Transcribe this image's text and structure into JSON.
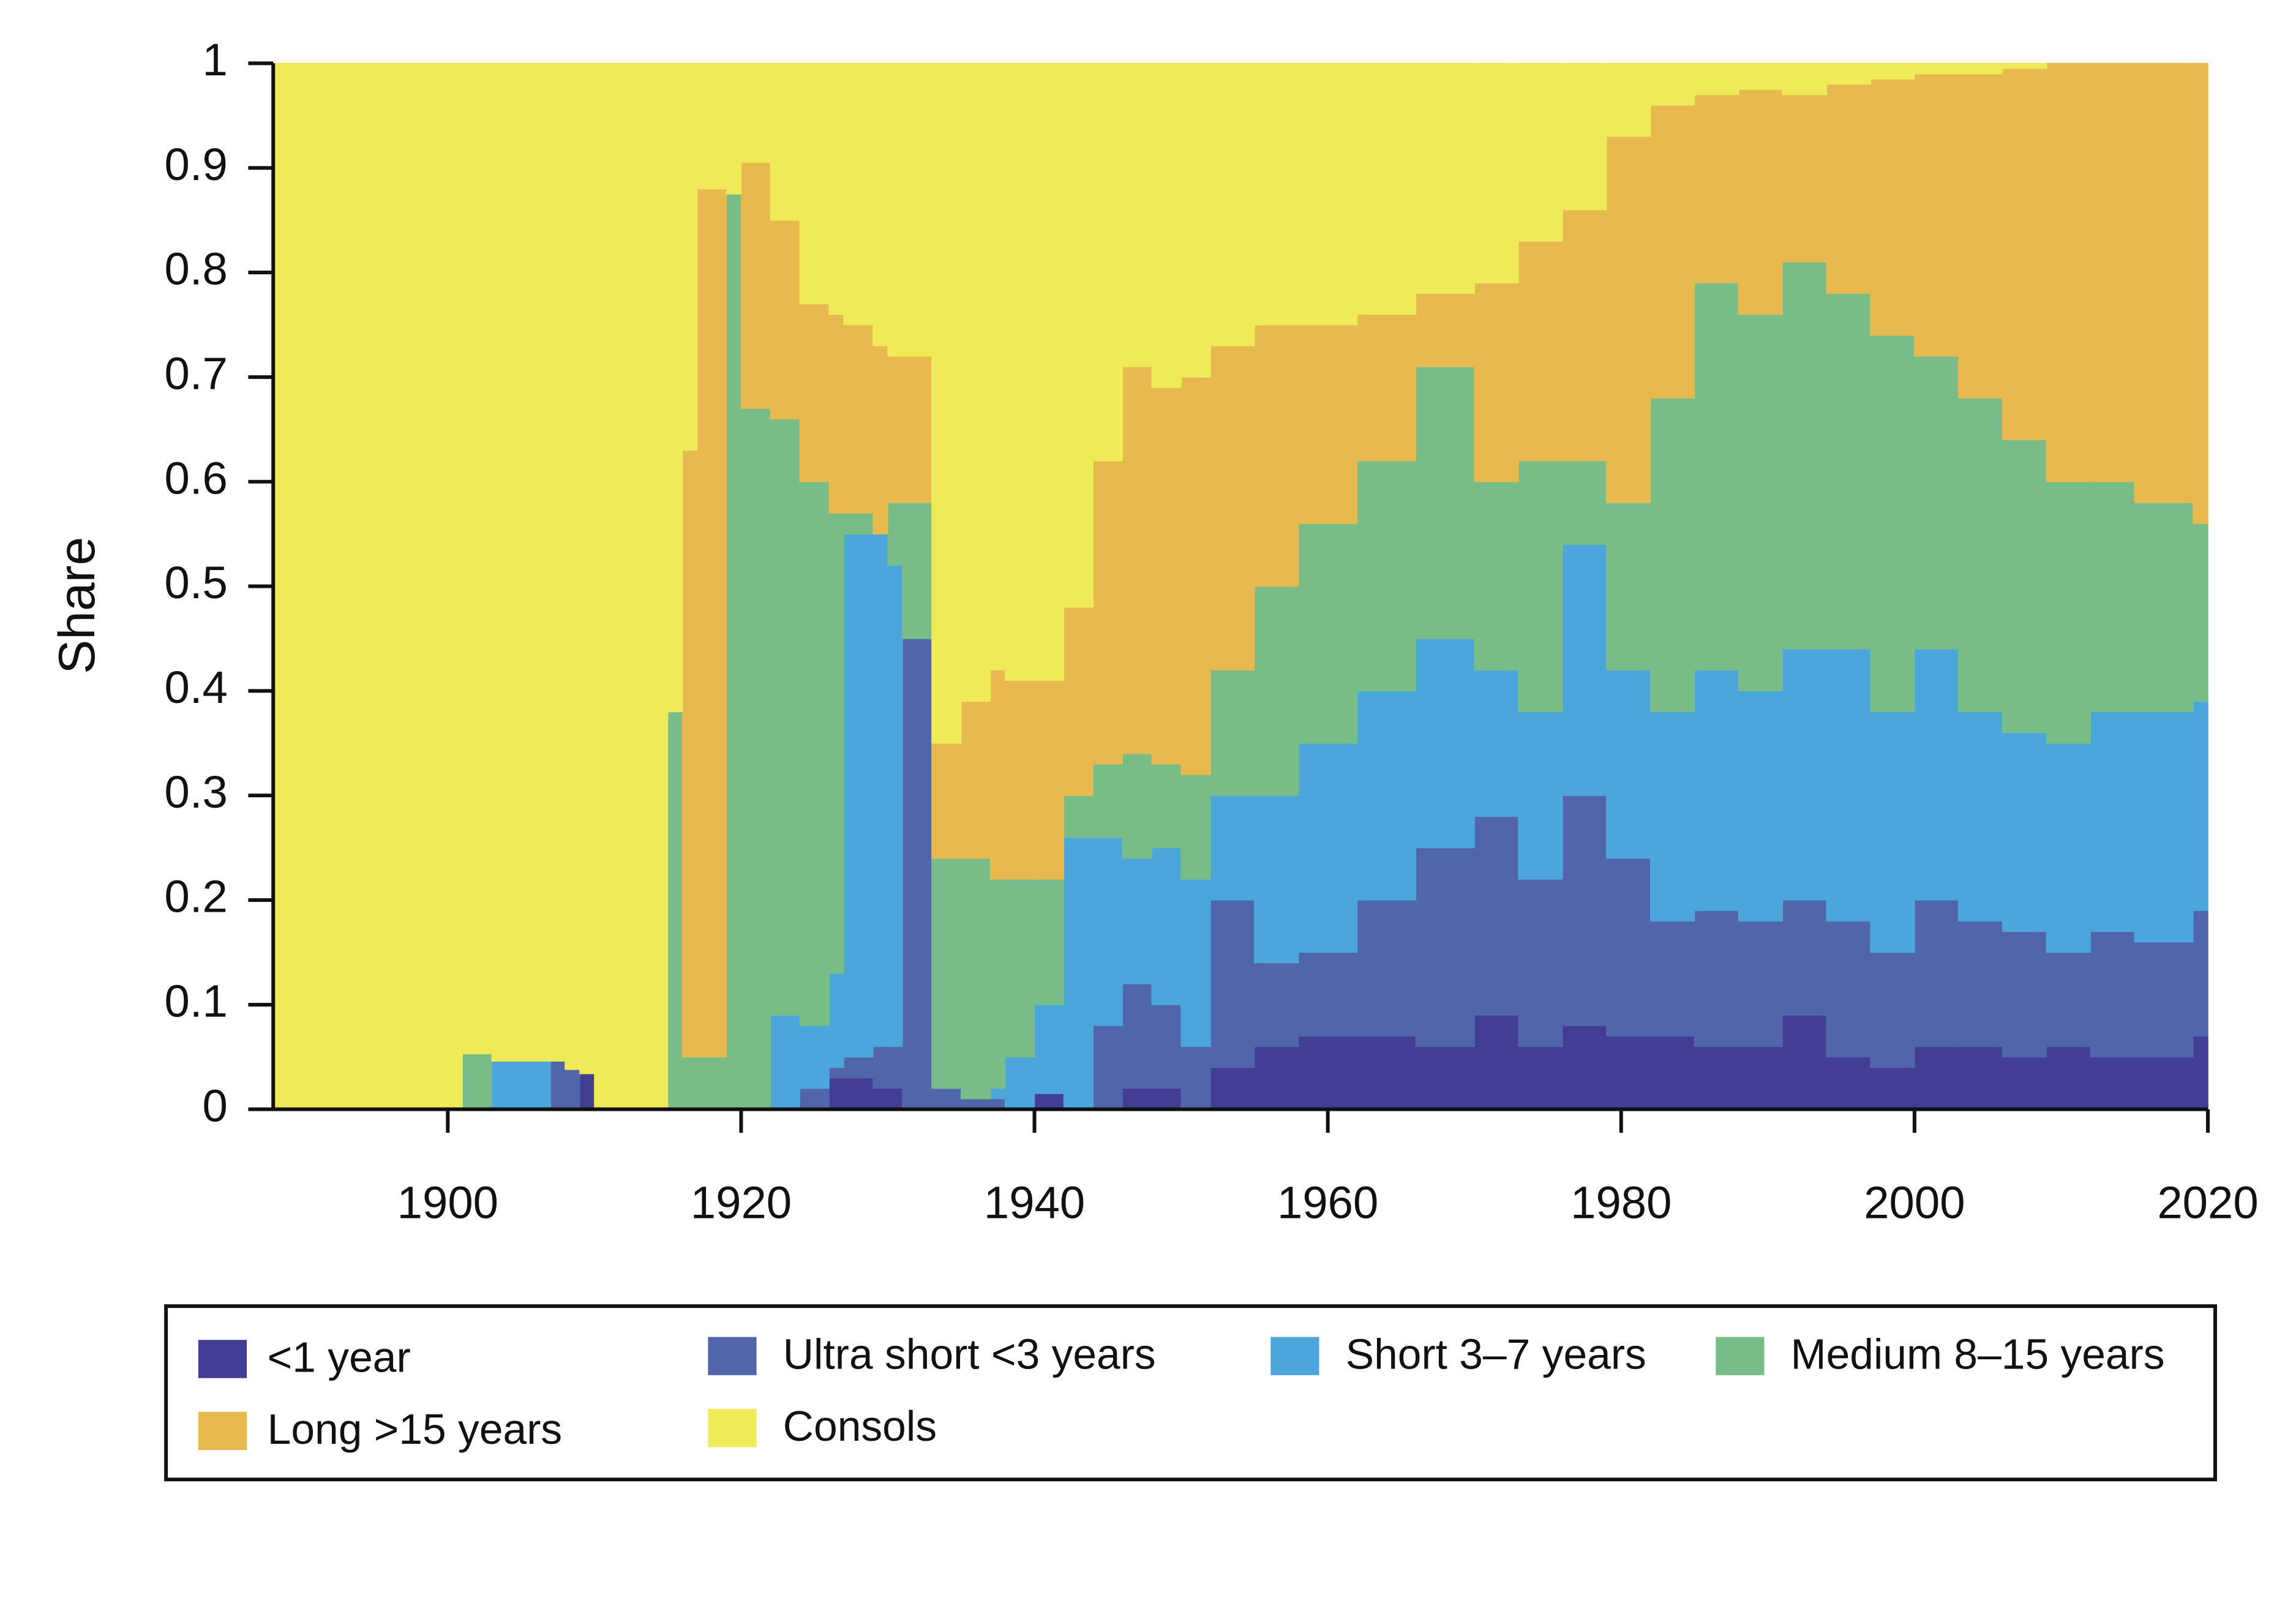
{
  "chart_data": {
    "type": "stacked-area",
    "y_label": "Share",
    "x": [
      1888,
      1901,
      1903,
      1907,
      1908,
      1909,
      1910,
      1915,
      1916,
      1917,
      1919,
      1920,
      1922,
      1924,
      1926,
      1927,
      1929,
      1930,
      1931,
      1933,
      1935,
      1937,
      1938,
      1940,
      1942,
      1944,
      1946,
      1948,
      1950,
      1952,
      1955,
      1958,
      1962,
      1966,
      1970,
      1973,
      1976,
      1979,
      1982,
      1985,
      1988,
      1991,
      1994,
      1997,
      2000,
      2003,
      2006,
      2009,
      2012,
      2015,
      2019
    ],
    "series": [
      {
        "name": "<1 year",
        "color": "#433d93",
        "values": [
          0,
          0,
          0,
          0,
          0,
          0.034,
          0,
          0,
          0,
          0,
          0,
          0,
          0,
          0,
          0.03,
          0.03,
          0.02,
          0.02,
          0,
          0,
          0,
          0,
          0,
          0.015,
          0,
          0,
          0.02,
          0.02,
          0,
          0.04,
          0.06,
          0.07,
          0.07,
          0.06,
          0.09,
          0.06,
          0.08,
          0.07,
          0.07,
          0.06,
          0.06,
          0.09,
          0.05,
          0.04,
          0.06,
          0.06,
          0.05,
          0.06,
          0.05,
          0.05,
          0.07
        ]
      },
      {
        "name": "Ultra short <3 years",
        "color": "#5165ab",
        "values": [
          0,
          0,
          0,
          0.046,
          0.038,
          0,
          0,
          0,
          0,
          0,
          0,
          0,
          0,
          0.02,
          0.01,
          0.02,
          0.04,
          0.04,
          0.45,
          0.02,
          0.01,
          0.01,
          0,
          0,
          0,
          0.08,
          0.1,
          0.08,
          0.06,
          0.16,
          0.08,
          0.08,
          0.13,
          0.19,
          0.19,
          0.16,
          0.22,
          0.17,
          0.11,
          0.13,
          0.12,
          0.11,
          0.13,
          0.11,
          0.14,
          0.12,
          0.12,
          0.09,
          0.12,
          0.11,
          0.12
        ]
      },
      {
        "name": "Short 3–7 years",
        "color": "#4ba6dc",
        "values": [
          0,
          0,
          0.046,
          0,
          0,
          0,
          0,
          0,
          0,
          0,
          0,
          0,
          0.09,
          0.06,
          0.09,
          0.5,
          0.49,
          0.46,
          0,
          0,
          0,
          0.01,
          0.05,
          0.085,
          0.26,
          0.18,
          0.12,
          0.15,
          0.16,
          0.1,
          0.16,
          0.2,
          0.2,
          0.2,
          0.14,
          0.16,
          0.24,
          0.18,
          0.2,
          0.23,
          0.22,
          0.24,
          0.26,
          0.23,
          0.24,
          0.2,
          0.19,
          0.2,
          0.21,
          0.22,
          0.2
        ]
      },
      {
        "name": "Medium 8–15 years",
        "color": "#78bd87",
        "values": [
          0,
          0.053,
          0,
          0,
          0,
          0,
          0,
          0.38,
          0.05,
          0.05,
          0.875,
          0.67,
          0.57,
          0.52,
          0.44,
          0.02,
          0,
          0.06,
          0.13,
          0.22,
          0.23,
          0.2,
          0.17,
          0.12,
          0.04,
          0.07,
          0.1,
          0.08,
          0.1,
          0.12,
          0.2,
          0.21,
          0.22,
          0.26,
          0.18,
          0.24,
          0.08,
          0.16,
          0.3,
          0.37,
          0.36,
          0.37,
          0.34,
          0.36,
          0.28,
          0.3,
          0.28,
          0.25,
          0.22,
          0.2,
          0.17
        ]
      },
      {
        "name": "Long >15 years",
        "color": "#e8b94f",
        "values": [
          0,
          0,
          0,
          0,
          0,
          0,
          0,
          0,
          0.58,
          0.83,
          0,
          0.235,
          0.19,
          0.17,
          0.19,
          0.18,
          0.18,
          0.14,
          0.14,
          0.11,
          0.15,
          0.2,
          0.19,
          0.19,
          0.18,
          0.29,
          0.37,
          0.36,
          0.38,
          0.31,
          0.25,
          0.19,
          0.14,
          0.07,
          0.19,
          0.21,
          0.24,
          0.35,
          0.28,
          0.18,
          0.215,
          0.16,
          0.2,
          0.245,
          0.27,
          0.31,
          0.355,
          0.4,
          0.4,
          0.42,
          0.44
        ]
      },
      {
        "name": "Consols",
        "color": "#eeea58",
        "values": [
          1,
          0.947,
          0.954,
          0.954,
          0.962,
          0.966,
          1,
          0.62,
          0.37,
          0.12,
          0.125,
          0.095,
          0.15,
          0.23,
          0.24,
          0.25,
          0.27,
          0.28,
          0.28,
          0.65,
          0.61,
          0.58,
          0.59,
          0.59,
          0.52,
          0.38,
          0.29,
          0.31,
          0.3,
          0.27,
          0.25,
          0.25,
          0.24,
          0.22,
          0.21,
          0.17,
          0.14,
          0.07,
          0.04,
          0.03,
          0.025,
          0.03,
          0.02,
          0.015,
          0.01,
          0.01,
          0.005,
          0,
          0,
          0,
          0
        ]
      }
    ],
    "xlim": [
      1888,
      2020
    ],
    "xticks": [
      1900,
      1920,
      1940,
      1960,
      1980,
      2000,
      2020
    ],
    "ylim": [
      0,
      1
    ],
    "yticks": [
      0,
      0.1,
      0.2,
      0.3,
      0.4,
      0.5,
      0.6,
      0.7,
      0.8,
      0.9,
      1
    ],
    "legend": "bottom"
  }
}
